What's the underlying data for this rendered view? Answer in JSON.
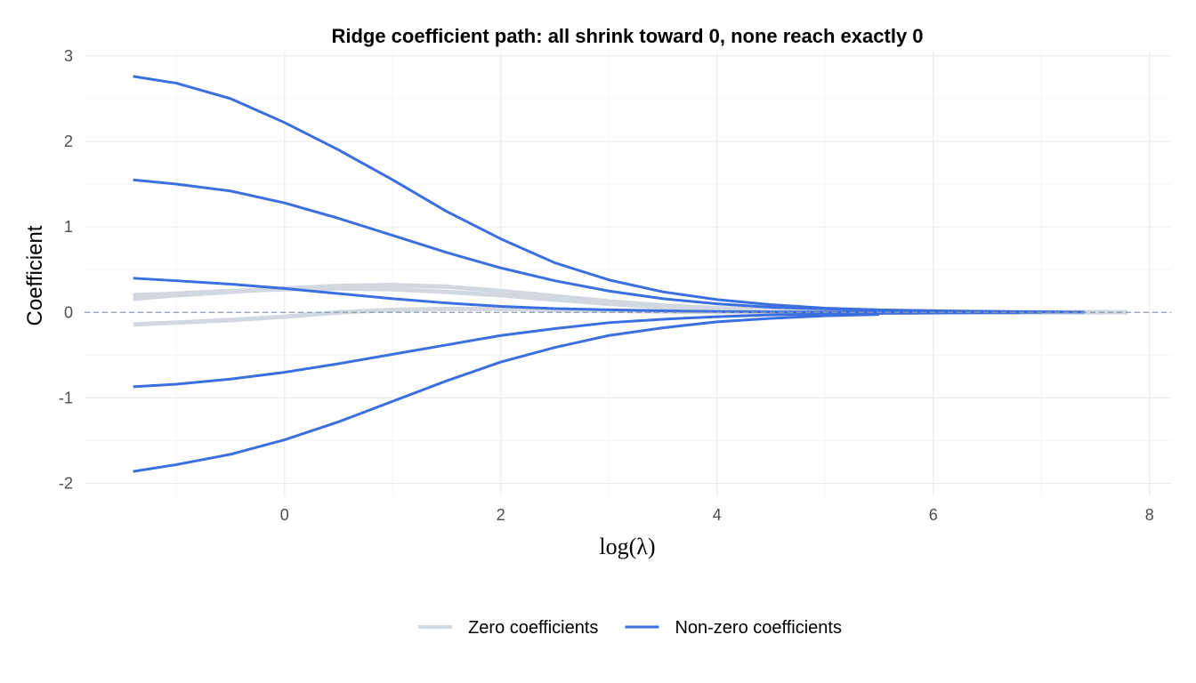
{
  "chart_data": {
    "type": "line",
    "title": "Ridge coefficient path: all shrink toward 0, none reach exactly 0",
    "xlabel": "log(λ)",
    "ylabel": "Coefficient",
    "xlim": [
      -1.85,
      8.2
    ],
    "ylim": [
      -2.15,
      3.05
    ],
    "x_ticks": [
      0,
      2,
      4,
      6,
      8
    ],
    "y_ticks": [
      -2,
      -1,
      0,
      1,
      2,
      3
    ],
    "grid": true,
    "legend_position": "bottom",
    "reference_line": {
      "y": 0,
      "style": "dashed",
      "color": "#8a9bb0"
    },
    "legend": [
      {
        "label": "Zero coefficients",
        "color": "#d3d8e0"
      },
      {
        "label": "Non-zero coefficients",
        "color": "#3b6fe0"
      }
    ],
    "series": [
      {
        "group": "Zero coefficients",
        "color": "#d3d8e0",
        "x": [
          -1.4,
          -1,
          -0.5,
          0,
          0.5,
          1,
          1.5,
          2,
          2.5,
          3,
          3.5,
          4,
          4.5,
          5,
          5.5,
          6,
          6.5,
          7,
          7.8
        ],
        "values": [
          0.16,
          0.2,
          0.24,
          0.28,
          0.31,
          0.32,
          0.3,
          0.25,
          0.19,
          0.13,
          0.08,
          0.05,
          0.03,
          0.02,
          0.01,
          0.01,
          0.005,
          0.003,
          0.001
        ]
      },
      {
        "group": "Zero coefficients",
        "color": "#d3d8e0",
        "x": [
          -1.4,
          -1,
          -0.5,
          0,
          0.5,
          1,
          1.5,
          2,
          2.5,
          3,
          3.5,
          4,
          4.5,
          5,
          5.5,
          6,
          6.5,
          7,
          7.6
        ],
        "values": [
          0.2,
          0.22,
          0.25,
          0.27,
          0.28,
          0.27,
          0.24,
          0.2,
          0.15,
          0.1,
          0.06,
          0.04,
          0.02,
          0.01,
          0.006,
          0.003,
          0.002,
          0.001,
          0.0005
        ]
      },
      {
        "group": "Zero coefficients",
        "color": "#d3d8e0",
        "x": [
          -1.4,
          -1,
          -0.5,
          0,
          0.5,
          1,
          1.5,
          2,
          2.5,
          3,
          3.5,
          4,
          4.5,
          5,
          5.5,
          6,
          6.5,
          7,
          7.4
        ],
        "values": [
          -0.14,
          -0.12,
          -0.09,
          -0.05,
          0.0,
          0.03,
          0.04,
          0.04,
          0.03,
          0.02,
          0.01,
          0.005,
          0.002,
          0.001,
          0.0,
          0.0,
          0.0,
          0.0,
          0.0
        ]
      },
      {
        "group": "Non-zero coefficients",
        "color": "#3b6fe0",
        "x": [
          -1.4,
          -1,
          -0.5,
          0,
          0.5,
          1,
          1.5,
          2,
          2.5,
          3,
          3.5,
          4,
          4.5,
          5,
          5.5,
          6,
          6.5,
          7,
          7.2
        ],
        "values": [
          2.76,
          2.68,
          2.5,
          2.22,
          1.9,
          1.55,
          1.18,
          0.86,
          0.58,
          0.38,
          0.24,
          0.15,
          0.09,
          0.05,
          0.03,
          0.02,
          0.01,
          0.006,
          0.004
        ]
      },
      {
        "group": "Non-zero coefficients",
        "color": "#3b6fe0",
        "x": [
          -1.4,
          -1,
          -0.5,
          0,
          0.5,
          1,
          1.5,
          2,
          2.5,
          3,
          3.5,
          4,
          4.5,
          5,
          5.5,
          6,
          6.5,
          7,
          7.4
        ],
        "values": [
          1.55,
          1.5,
          1.42,
          1.28,
          1.1,
          0.9,
          0.7,
          0.52,
          0.37,
          0.25,
          0.16,
          0.1,
          0.06,
          0.04,
          0.025,
          0.015,
          0.01,
          0.005,
          0.003
        ]
      },
      {
        "group": "Non-zero coefficients",
        "color": "#3b6fe0",
        "x": [
          -1.4,
          -1,
          -0.5,
          0,
          0.5,
          1,
          1.5,
          2,
          2.5,
          3,
          3.5,
          4,
          4.5,
          5,
          5.5,
          6,
          6.5,
          7
        ],
        "values": [
          0.4,
          0.37,
          0.33,
          0.28,
          0.22,
          0.16,
          0.11,
          0.07,
          0.045,
          0.03,
          0.018,
          0.01,
          0.006,
          0.004,
          0.002,
          0.001,
          0.0005,
          0.0003
        ]
      },
      {
        "group": "Non-zero coefficients",
        "color": "#3b6fe0",
        "x": [
          -1.4,
          -1,
          -0.5,
          0,
          0.5,
          1,
          1.5,
          2,
          2.5,
          3,
          3.5,
          4,
          4.5,
          5,
          5.5,
          6,
          6.5,
          6.8
        ],
        "values": [
          -0.87,
          -0.84,
          -0.78,
          -0.7,
          -0.6,
          -0.49,
          -0.38,
          -0.27,
          -0.19,
          -0.12,
          -0.08,
          -0.05,
          -0.03,
          -0.02,
          -0.012,
          -0.007,
          -0.004,
          -0.003
        ]
      },
      {
        "group": "Non-zero coefficients",
        "color": "#3b6fe0",
        "x": [
          -1.4,
          -1,
          -0.5,
          0,
          0.5,
          1,
          1.5,
          2,
          2.5,
          3,
          3.5,
          4,
          4.5,
          5,
          5.5
        ],
        "values": [
          -1.86,
          -1.78,
          -1.66,
          -1.49,
          -1.28,
          -1.04,
          -0.8,
          -0.58,
          -0.41,
          -0.27,
          -0.18,
          -0.11,
          -0.07,
          -0.04,
          -0.025
        ]
      }
    ]
  }
}
